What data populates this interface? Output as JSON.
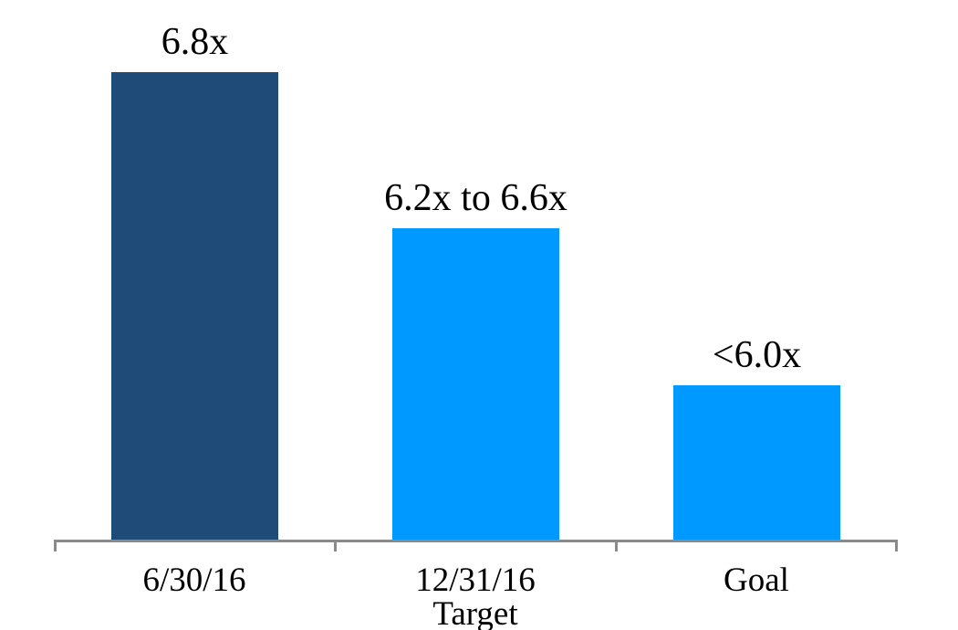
{
  "chart_data": {
    "type": "bar",
    "title": "",
    "xlabel": "",
    "ylabel": "",
    "categories": [
      "6/30/16",
      "12/31/16 Target",
      "Goal"
    ],
    "category_lines": [
      [
        "6/30/16"
      ],
      [
        "12/31/16",
        "Target"
      ],
      [
        "Goal"
      ]
    ],
    "values": [
      6.8,
      6.4,
      6.0
    ],
    "value_labels": [
      "6.8x",
      "6.2x to 6.6x",
      "<6.0x"
    ],
    "value_note": "middle bar depicts a target range of 6.2x to 6.6x; last bar depicts a goal of less than 6.0x",
    "ylim": [
      5.6,
      6.8
    ],
    "grid": false,
    "legend": false,
    "bar_colors": [
      "#1F4B78",
      "#0099FF",
      "#0099FF"
    ],
    "axis_line_color": "#8A8A8A",
    "text_color": "#000000",
    "background": "#FFFFFF"
  }
}
